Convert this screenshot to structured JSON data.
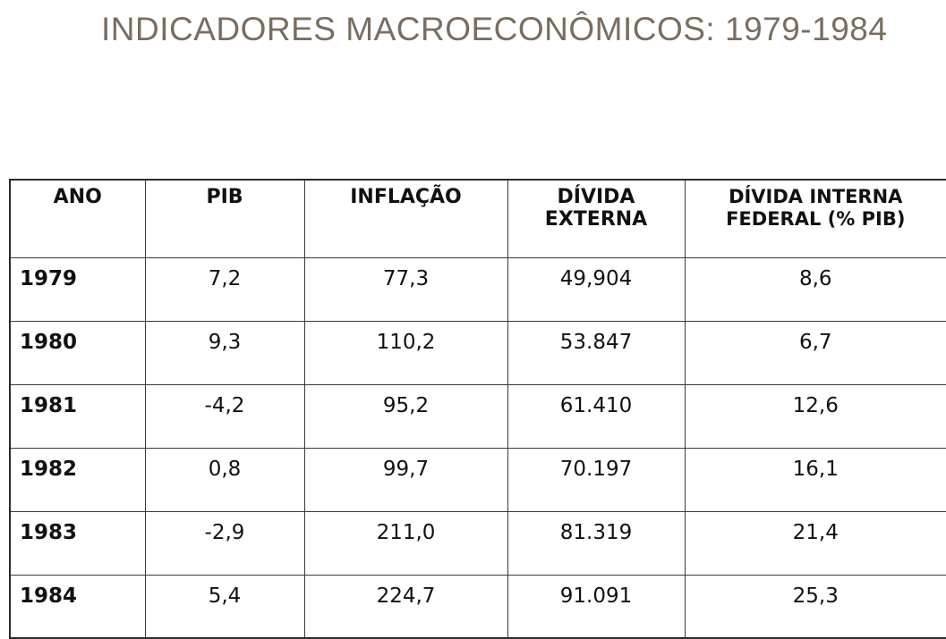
{
  "title": "INDICADORES MACROECONÔMICOS: 1979-1984",
  "table": {
    "headers": [
      "ANO",
      "PIB",
      "INFLAÇÃO",
      "DÍVIDA EXTERNA",
      "DÍVIDA INTERNA FEDERAL (% PIB)"
    ],
    "rows": [
      {
        "ano": "1979",
        "pib": "7,2",
        "inflacao": "77,3",
        "divida_externa": "49,904",
        "divida_interna": "8,6"
      },
      {
        "ano": "1980",
        "pib": "9,3",
        "inflacao": "110,2",
        "divida_externa": "53.847",
        "divida_interna": "6,7"
      },
      {
        "ano": "1981",
        "pib": "-4,2",
        "inflacao": "95,2",
        "divida_externa": "61.410",
        "divida_interna": "12,6"
      },
      {
        "ano": "1982",
        "pib": "0,8",
        "inflacao": "99,7",
        "divida_externa": "70.197",
        "divida_interna": "16,1"
      },
      {
        "ano": "1983",
        "pib": "-2,9",
        "inflacao": "211,0",
        "divida_externa": "81.319",
        "divida_interna": "21,4"
      },
      {
        "ano": "1984",
        "pib": "5,4",
        "inflacao": "224,7",
        "divida_externa": "91.091",
        "divida_interna": "25,3"
      }
    ]
  }
}
